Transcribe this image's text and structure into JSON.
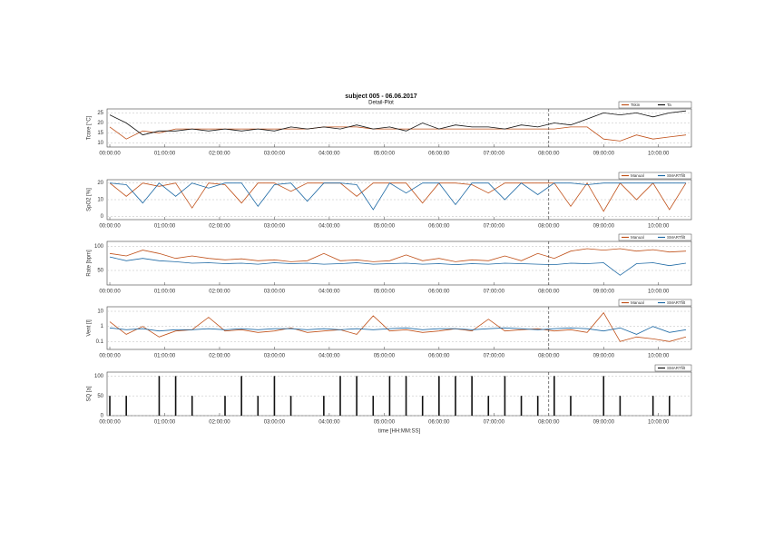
{
  "title": "subject 005 - 06.06.2017",
  "subtitle": "Detail-Plot",
  "chart_data": [
    {
      "type": "line",
      "ylabel": "Tcore [°C]",
      "ylim": [
        8,
        27
      ],
      "yticks": [
        10,
        15,
        20,
        25
      ],
      "grid": true,
      "vline": 8,
      "legend": "upper right",
      "xlim": [
        -0.05,
        10.6
      ],
      "xticks": [
        {
          "value": 0,
          "label": "00:00:00"
        },
        {
          "value": 1,
          "label": "01:00:00"
        },
        {
          "value": 2,
          "label": "02:00:00"
        },
        {
          "value": 3,
          "label": "03:00:00"
        },
        {
          "value": 4,
          "label": "04:00:00"
        },
        {
          "value": 5,
          "label": "05:00:00"
        },
        {
          "value": 6,
          "label": "06:00:00"
        },
        {
          "value": 7,
          "label": "07:00:00"
        },
        {
          "value": 8,
          "label": "08:00:00"
        },
        {
          "value": 9,
          "label": "09:00:00"
        },
        {
          "value": 10,
          "label": "10:00:00"
        }
      ],
      "x": [
        0,
        0.3,
        0.6,
        0.9,
        1.2,
        1.5,
        1.8,
        2.1,
        2.4,
        2.7,
        3,
        3.3,
        3.6,
        3.9,
        4.2,
        4.5,
        4.8,
        5.1,
        5.4,
        5.7,
        6,
        6.3,
        6.6,
        6.9,
        7.2,
        7.5,
        7.8,
        8.1,
        8.4,
        8.7,
        9,
        9.3,
        9.6,
        9.9,
        10.2,
        10.5
      ],
      "series": [
        {
          "name": "Tskin",
          "color": "#c0511a",
          "values": [
            18,
            12,
            16,
            15,
            17,
            17,
            17,
            17,
            17,
            17,
            17,
            17,
            17,
            18,
            18,
            18,
            17,
            17,
            17,
            17,
            17,
            17,
            17,
            17,
            17,
            17,
            17,
            17,
            18,
            18,
            12,
            11,
            14,
            12,
            13,
            14
          ]
        },
        {
          "name": "Ta",
          "color": "#111111",
          "values": [
            24,
            20,
            14,
            16,
            16,
            17,
            16,
            17,
            16,
            17,
            16,
            18,
            17,
            18,
            17,
            19,
            17,
            18,
            16,
            20,
            17,
            19,
            18,
            18,
            17,
            19,
            18,
            20,
            19,
            22,
            25,
            24,
            25,
            23,
            25,
            26
          ]
        }
      ]
    },
    {
      "type": "line",
      "ylabel": "SpO2 [%]",
      "ylim": [
        -2,
        22
      ],
      "yticks": [
        0,
        10,
        20
      ],
      "grid": true,
      "vline": 8,
      "legend": "upper right",
      "xlim": [
        -0.05,
        10.6
      ],
      "xticks": [
        {
          "value": 0,
          "label": "00:00:00"
        },
        {
          "value": 1,
          "label": "01:00:00"
        },
        {
          "value": 2,
          "label": "02:00:00"
        },
        {
          "value": 3,
          "label": "03:00:00"
        },
        {
          "value": 4,
          "label": "04:00:00"
        },
        {
          "value": 5,
          "label": "05:00:00"
        },
        {
          "value": 6,
          "label": "06:00:00"
        },
        {
          "value": 7,
          "label": "07:00:00"
        },
        {
          "value": 8,
          "label": "08:00:00"
        },
        {
          "value": 9,
          "label": "09:00:00"
        },
        {
          "value": 10,
          "label": "10:00:00"
        }
      ],
      "x": [
        0,
        0.3,
        0.6,
        0.9,
        1.2,
        1.5,
        1.8,
        2.1,
        2.4,
        2.7,
        3,
        3.3,
        3.6,
        3.9,
        4.2,
        4.5,
        4.8,
        5.1,
        5.4,
        5.7,
        6,
        6.3,
        6.6,
        6.9,
        7.2,
        7.5,
        7.8,
        8.1,
        8.4,
        8.7,
        9,
        9.3,
        9.6,
        9.9,
        10.2,
        10.5
      ],
      "series": [
        {
          "name": "Manual",
          "color": "#c0511a",
          "values": [
            20,
            12,
            20,
            18,
            20,
            5,
            20,
            19,
            8,
            20,
            20,
            15,
            20,
            20,
            20,
            12,
            20,
            20,
            20,
            8,
            20,
            20,
            19,
            14,
            20,
            20,
            20,
            20,
            6,
            20,
            3,
            20,
            10,
            20,
            4,
            20
          ]
        },
        {
          "name": "SMARTfilt",
          "color": "#1f6aa5",
          "values": [
            20,
            19,
            8,
            20,
            12,
            20,
            17,
            20,
            20,
            6,
            19,
            20,
            9,
            20,
            20,
            19,
            4,
            20,
            14,
            20,
            20,
            7,
            20,
            20,
            10,
            20,
            13,
            20,
            20,
            19,
            20,
            20,
            20,
            20,
            20,
            20
          ]
        }
      ]
    },
    {
      "type": "line",
      "ylabel": "Rate [bpm]",
      "ylim": [
        20,
        110
      ],
      "yticks": [
        50,
        100
      ],
      "grid": true,
      "vline": 8,
      "legend": "upper right",
      "xlim": [
        -0.05,
        10.6
      ],
      "xticks": [
        {
          "value": 0,
          "label": "00:00:00"
        },
        {
          "value": 1,
          "label": "01:00:00"
        },
        {
          "value": 2,
          "label": "02:00:00"
        },
        {
          "value": 3,
          "label": "03:00:00"
        },
        {
          "value": 4,
          "label": "04:00:00"
        },
        {
          "value": 5,
          "label": "05:00:00"
        },
        {
          "value": 6,
          "label": "06:00:00"
        },
        {
          "value": 7,
          "label": "07:00:00"
        },
        {
          "value": 8,
          "label": "08:00:00"
        },
        {
          "value": 9,
          "label": "09:00:00"
        },
        {
          "value": 10,
          "label": "10:00:00"
        }
      ],
      "x": [
        0,
        0.3,
        0.6,
        0.9,
        1.2,
        1.5,
        1.8,
        2.1,
        2.4,
        2.7,
        3,
        3.3,
        3.6,
        3.9,
        4.2,
        4.5,
        4.8,
        5.1,
        5.4,
        5.7,
        6,
        6.3,
        6.6,
        6.9,
        7.2,
        7.5,
        7.8,
        8.1,
        8.4,
        8.7,
        9,
        9.3,
        9.6,
        9.9,
        10.2,
        10.5
      ],
      "series": [
        {
          "name": "Manual",
          "color": "#c0511a",
          "values": [
            85,
            80,
            92,
            85,
            75,
            80,
            75,
            72,
            74,
            70,
            72,
            68,
            70,
            85,
            70,
            72,
            68,
            70,
            82,
            70,
            75,
            68,
            72,
            70,
            80,
            70,
            85,
            75,
            90,
            95,
            92,
            95,
            90,
            93,
            88,
            90
          ]
        },
        {
          "name": "SMARTfilt",
          "color": "#1f6aa5",
          "values": [
            78,
            70,
            75,
            70,
            68,
            65,
            66,
            64,
            65,
            63,
            66,
            64,
            65,
            63,
            64,
            66,
            63,
            64,
            65,
            63,
            64,
            62,
            64,
            63,
            65,
            64,
            63,
            62,
            65,
            64,
            66,
            40,
            64,
            66,
            60,
            65
          ]
        }
      ]
    },
    {
      "type": "line",
      "ylabel": "Vent [l]",
      "log": true,
      "ylim": [
        0.03,
        20
      ],
      "yticks": [
        0.1,
        1,
        10
      ],
      "grid": true,
      "vline": 8,
      "legend": "upper right",
      "xlim": [
        -0.05,
        10.6
      ],
      "xticks": [
        {
          "value": 0,
          "label": "00:00:00"
        },
        {
          "value": 1,
          "label": "01:00:00"
        },
        {
          "value": 2,
          "label": "02:00:00"
        },
        {
          "value": 3,
          "label": "03:00:00"
        },
        {
          "value": 4,
          "label": "04:00:00"
        },
        {
          "value": 5,
          "label": "05:00:00"
        },
        {
          "value": 6,
          "label": "06:00:00"
        },
        {
          "value": 7,
          "label": "07:00:00"
        },
        {
          "value": 8,
          "label": "08:00:00"
        },
        {
          "value": 9,
          "label": "09:00:00"
        },
        {
          "value": 10,
          "label": "10:00:00"
        }
      ],
      "x": [
        0,
        0.3,
        0.6,
        0.9,
        1.2,
        1.5,
        1.8,
        2.1,
        2.4,
        2.7,
        3,
        3.3,
        3.6,
        3.9,
        4.2,
        4.5,
        4.8,
        5.1,
        5.4,
        5.7,
        6,
        6.3,
        6.6,
        6.9,
        7.2,
        7.5,
        7.8,
        8.1,
        8.4,
        8.7,
        9,
        9.3,
        9.6,
        9.9,
        10.2,
        10.5
      ],
      "series": [
        {
          "name": "Manual",
          "color": "#c0511a",
          "values": [
            2,
            0.3,
            1,
            0.2,
            0.5,
            0.6,
            4,
            0.5,
            0.6,
            0.4,
            0.5,
            0.8,
            0.4,
            0.5,
            0.6,
            0.3,
            5,
            0.5,
            0.6,
            0.4,
            0.5,
            0.7,
            0.5,
            3,
            0.5,
            0.6,
            0.7,
            0.5,
            0.6,
            0.4,
            8,
            0.1,
            0.2,
            0.15,
            0.1,
            0.2
          ]
        },
        {
          "name": "SMARTfilt",
          "color": "#1f6aa5",
          "values": [
            0.8,
            0.6,
            0.7,
            0.5,
            0.6,
            0.6,
            0.7,
            0.6,
            0.7,
            0.6,
            0.7,
            0.7,
            0.6,
            0.7,
            0.6,
            0.7,
            0.6,
            0.7,
            0.8,
            0.6,
            0.7,
            0.7,
            0.6,
            0.7,
            0.8,
            0.7,
            0.6,
            0.7,
            0.8,
            0.7,
            0.5,
            0.8,
            0.3,
            1,
            0.4,
            0.6
          ]
        }
      ]
    },
    {
      "type": "bar",
      "ylabel": "SQ [a]",
      "xlabel": "time [HH:MM:SS]",
      "ylim": [
        0,
        110
      ],
      "yticks": [
        0,
        50,
        100
      ],
      "grid": true,
      "vline": 8,
      "legend": "upper right",
      "xlim": [
        -0.05,
        10.6
      ],
      "xticks": [
        {
          "value": 0,
          "label": "00:00:00"
        },
        {
          "value": 1,
          "label": "01:00:00"
        },
        {
          "value": 2,
          "label": "02:00:00"
        },
        {
          "value": 3,
          "label": "03:00:00"
        },
        {
          "value": 4,
          "label": "04:00:00"
        },
        {
          "value": 5,
          "label": "05:00:00"
        },
        {
          "value": 6,
          "label": "06:00:00"
        },
        {
          "value": 7,
          "label": "07:00:00"
        },
        {
          "value": 8,
          "label": "08:00:00"
        },
        {
          "value": 9,
          "label": "09:00:00"
        },
        {
          "value": 10,
          "label": "10:00:00"
        }
      ],
      "x": [
        0,
        0.3,
        0.6,
        0.9,
        1.2,
        1.5,
        1.8,
        2.1,
        2.4,
        2.7,
        3,
        3.3,
        3.6,
        3.9,
        4.2,
        4.5,
        4.8,
        5.1,
        5.4,
        5.7,
        6,
        6.3,
        6.6,
        6.9,
        7.2,
        7.5,
        7.8,
        8.1,
        8.4,
        8.7,
        9,
        9.3,
        9.6,
        9.9,
        10.2,
        10.5
      ],
      "series": [
        {
          "name": "SMARTfilt",
          "color": "#111111",
          "values": [
            50,
            50,
            0,
            100,
            100,
            50,
            0,
            50,
            100,
            50,
            100,
            50,
            0,
            50,
            100,
            100,
            50,
            100,
            100,
            50,
            100,
            100,
            100,
            50,
            100,
            50,
            50,
            100,
            50,
            0,
            100,
            50,
            0,
            50,
            50,
            0
          ]
        }
      ]
    }
  ]
}
